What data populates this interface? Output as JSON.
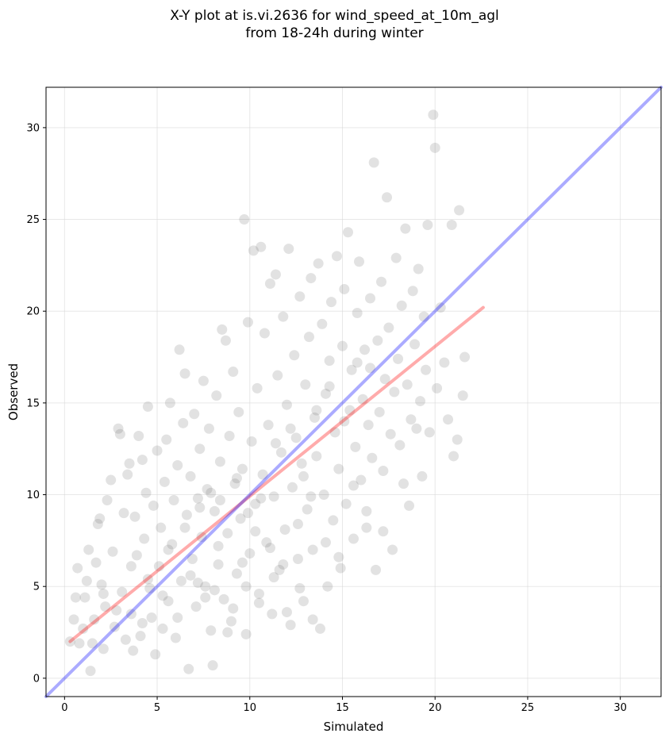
{
  "title": {
    "line1": "X-Y plot at is.vi.2636 for wind_speed_at_10m_agl",
    "line2": "from 18-24h during winter"
  },
  "chart_data": {
    "type": "scatter",
    "xlabel": "Simulated",
    "ylabel": "Observed",
    "xlim": [
      -1.0,
      32.2
    ],
    "ylim": [
      -1.0,
      32.2
    ],
    "xticks": [
      0,
      5,
      10,
      15,
      20,
      25,
      30
    ],
    "yticks": [
      0,
      5,
      10,
      15,
      20,
      25,
      30
    ],
    "grid": true,
    "point_color": "#555555",
    "point_opacity": 0.17,
    "points": [
      [
        0.3,
        2.0
      ],
      [
        0.5,
        3.2
      ],
      [
        0.6,
        4.4
      ],
      [
        0.7,
        6.0
      ],
      [
        0.8,
        1.9
      ],
      [
        1.0,
        2.7
      ],
      [
        1.1,
        4.4
      ],
      [
        1.2,
        5.3
      ],
      [
        1.3,
        7.0
      ],
      [
        1.4,
        0.4
      ],
      [
        1.5,
        1.9
      ],
      [
        1.6,
        3.2
      ],
      [
        1.7,
        6.3
      ],
      [
        1.8,
        8.4
      ],
      [
        1.9,
        8.7
      ],
      [
        2.0,
        5.1
      ],
      [
        2.1,
        1.6
      ],
      [
        2.2,
        3.9
      ],
      [
        2.3,
        9.7
      ],
      [
        2.5,
        10.8
      ],
      [
        2.6,
        6.9
      ],
      [
        2.7,
        2.8
      ],
      [
        2.9,
        13.6
      ],
      [
        3.0,
        13.3
      ],
      [
        3.1,
        4.7
      ],
      [
        3.2,
        9.0
      ],
      [
        3.4,
        11.1
      ],
      [
        3.5,
        11.7
      ],
      [
        3.6,
        3.5
      ],
      [
        3.7,
        1.5
      ],
      [
        3.8,
        8.8
      ],
      [
        3.9,
        6.7
      ],
      [
        4.0,
        13.2
      ],
      [
        4.1,
        2.3
      ],
      [
        4.2,
        11.9
      ],
      [
        4.3,
        7.6
      ],
      [
        4.4,
        10.1
      ],
      [
        4.5,
        14.8
      ],
      [
        4.6,
        4.9
      ],
      [
        4.7,
        3.3
      ],
      [
        4.8,
        9.4
      ],
      [
        4.9,
        1.3
      ],
      [
        5.0,
        12.4
      ],
      [
        5.1,
        6.1
      ],
      [
        5.2,
        8.2
      ],
      [
        5.3,
        2.7
      ],
      [
        5.4,
        10.7
      ],
      [
        5.5,
        13.0
      ],
      [
        5.6,
        4.2
      ],
      [
        5.7,
        15.0
      ],
      [
        5.8,
        7.3
      ],
      [
        5.9,
        9.7
      ],
      [
        6.0,
        2.2
      ],
      [
        6.1,
        11.6
      ],
      [
        6.2,
        17.9
      ],
      [
        6.3,
        5.3
      ],
      [
        6.4,
        13.9
      ],
      [
        6.5,
        16.6
      ],
      [
        6.6,
        8.9
      ],
      [
        6.7,
        0.5
      ],
      [
        6.8,
        11.0
      ],
      [
        6.9,
        6.5
      ],
      [
        7.0,
        14.4
      ],
      [
        7.1,
        3.9
      ],
      [
        7.2,
        9.8
      ],
      [
        7.3,
        12.5
      ],
      [
        7.4,
        7.7
      ],
      [
        7.5,
        16.2
      ],
      [
        7.6,
        5.0
      ],
      [
        7.7,
        10.3
      ],
      [
        7.8,
        13.6
      ],
      [
        7.9,
        2.6
      ],
      [
        8.0,
        0.7
      ],
      [
        8.1,
        9.1
      ],
      [
        8.2,
        15.4
      ],
      [
        8.3,
        6.2
      ],
      [
        8.4,
        11.8
      ],
      [
        8.5,
        19.0
      ],
      [
        8.6,
        4.3
      ],
      [
        8.7,
        18.4
      ],
      [
        8.8,
        7.9
      ],
      [
        8.9,
        13.2
      ],
      [
        9.0,
        3.1
      ],
      [
        9.1,
        16.7
      ],
      [
        9.2,
        10.6
      ],
      [
        9.3,
        5.7
      ],
      [
        9.4,
        14.5
      ],
      [
        9.5,
        8.7
      ],
      [
        9.6,
        11.4
      ],
      [
        9.7,
        25.0
      ],
      [
        9.8,
        2.4
      ],
      [
        9.9,
        19.4
      ],
      [
        10.0,
        6.8
      ],
      [
        10.1,
        12.9
      ],
      [
        10.2,
        23.3
      ],
      [
        10.3,
        9.5
      ],
      [
        10.4,
        15.8
      ],
      [
        10.5,
        4.6
      ],
      [
        10.6,
        23.5
      ],
      [
        10.7,
        11.1
      ],
      [
        10.8,
        18.8
      ],
      [
        10.9,
        7.4
      ],
      [
        11.0,
        13.8
      ],
      [
        11.1,
        21.5
      ],
      [
        11.2,
        3.5
      ],
      [
        11.3,
        9.9
      ],
      [
        11.4,
        22.0
      ],
      [
        11.5,
        16.5
      ],
      [
        11.6,
        5.9
      ],
      [
        11.7,
        12.3
      ],
      [
        11.8,
        19.7
      ],
      [
        11.9,
        8.1
      ],
      [
        12.0,
        14.9
      ],
      [
        12.1,
        23.4
      ],
      [
        12.2,
        2.9
      ],
      [
        12.3,
        10.4
      ],
      [
        12.4,
        17.6
      ],
      [
        12.5,
        13.1
      ],
      [
        12.6,
        6.5
      ],
      [
        12.7,
        20.8
      ],
      [
        12.8,
        11.7
      ],
      [
        12.9,
        4.2
      ],
      [
        13.0,
        16.0
      ],
      [
        13.1,
        9.2
      ],
      [
        13.2,
        18.6
      ],
      [
        13.3,
        21.8
      ],
      [
        13.4,
        7.0
      ],
      [
        13.5,
        14.2
      ],
      [
        13.6,
        12.1
      ],
      [
        13.7,
        22.6
      ],
      [
        13.8,
        2.7
      ],
      [
        13.9,
        19.3
      ],
      [
        14.0,
        10.0
      ],
      [
        14.1,
        15.5
      ],
      [
        14.2,
        5.0
      ],
      [
        14.3,
        17.3
      ],
      [
        14.4,
        20.5
      ],
      [
        14.5,
        8.6
      ],
      [
        14.6,
        13.4
      ],
      [
        14.7,
        23.0
      ],
      [
        14.8,
        11.4
      ],
      [
        14.9,
        6.0
      ],
      [
        15.0,
        18.1
      ],
      [
        15.1,
        21.2
      ],
      [
        15.2,
        9.5
      ],
      [
        15.3,
        24.3
      ],
      [
        15.4,
        14.6
      ],
      [
        15.5,
        16.8
      ],
      [
        15.6,
        7.6
      ],
      [
        15.7,
        12.6
      ],
      [
        15.8,
        19.9
      ],
      [
        15.9,
        22.7
      ],
      [
        16.0,
        10.8
      ],
      [
        16.1,
        15.2
      ],
      [
        16.2,
        17.9
      ],
      [
        16.3,
        8.2
      ],
      [
        16.4,
        13.8
      ],
      [
        16.5,
        20.7
      ],
      [
        16.6,
        12.0
      ],
      [
        16.7,
        28.1
      ],
      [
        16.8,
        5.9
      ],
      [
        16.9,
        18.4
      ],
      [
        17.0,
        14.5
      ],
      [
        17.1,
        21.6
      ],
      [
        17.2,
        11.3
      ],
      [
        17.3,
        16.3
      ],
      [
        17.4,
        26.2
      ],
      [
        17.5,
        19.1
      ],
      [
        17.6,
        13.3
      ],
      [
        17.7,
        7.0
      ],
      [
        17.8,
        15.6
      ],
      [
        17.9,
        22.9
      ],
      [
        18.0,
        17.4
      ],
      [
        18.1,
        12.7
      ],
      [
        18.2,
        20.3
      ],
      [
        18.3,
        10.6
      ],
      [
        18.4,
        24.5
      ],
      [
        18.5,
        16.0
      ],
      [
        18.6,
        9.4
      ],
      [
        18.7,
        14.1
      ],
      [
        18.8,
        21.1
      ],
      [
        18.9,
        18.2
      ],
      [
        19.0,
        13.6
      ],
      [
        19.1,
        22.3
      ],
      [
        19.2,
        15.1
      ],
      [
        19.3,
        11.0
      ],
      [
        19.4,
        19.7
      ],
      [
        19.5,
        16.8
      ],
      [
        19.6,
        24.7
      ],
      [
        19.7,
        13.4
      ],
      [
        19.9,
        30.7
      ],
      [
        20.0,
        28.9
      ],
      [
        20.1,
        15.8
      ],
      [
        20.3,
        20.2
      ],
      [
        20.5,
        17.2
      ],
      [
        20.7,
        14.1
      ],
      [
        20.9,
        24.7
      ],
      [
        21.0,
        12.1
      ],
      [
        21.2,
        13.0
      ],
      [
        21.3,
        25.5
      ],
      [
        21.5,
        15.4
      ],
      [
        21.6,
        17.5
      ],
      [
        3.3,
        2.1
      ],
      [
        4.2,
        3.0
      ],
      [
        5.3,
        4.5
      ],
      [
        6.1,
        3.3
      ],
      [
        7.2,
        5.2
      ],
      [
        8.1,
        4.8
      ],
      [
        8.8,
        2.5
      ],
      [
        9.6,
        6.3
      ],
      [
        2.1,
        4.6
      ],
      [
        2.8,
        3.7
      ],
      [
        3.6,
        6.1
      ],
      [
        4.5,
        5.4
      ],
      [
        5.6,
        7.0
      ],
      [
        6.5,
        8.2
      ],
      [
        7.3,
        9.3
      ],
      [
        7.9,
        10.1
      ],
      [
        8.4,
        9.7
      ],
      [
        9.3,
        10.9
      ],
      [
        9.9,
        9.0
      ],
      [
        10.6,
        9.8
      ],
      [
        11.4,
        12.8
      ],
      [
        12.2,
        13.6
      ],
      [
        12.9,
        11.0
      ],
      [
        13.6,
        14.6
      ],
      [
        14.3,
        15.9
      ],
      [
        15.1,
        14.0
      ],
      [
        15.8,
        17.2
      ],
      [
        16.5,
        16.9
      ],
      [
        10.3,
        8.0
      ],
      [
        11.1,
        7.1
      ],
      [
        11.8,
        6.2
      ],
      [
        12.6,
        8.4
      ],
      [
        13.3,
        9.9
      ],
      [
        14.1,
        7.4
      ],
      [
        14.8,
        6.6
      ],
      [
        15.6,
        10.5
      ],
      [
        16.3,
        9.1
      ],
      [
        17.2,
        8.0
      ],
      [
        6.8,
        5.6
      ],
      [
        7.6,
        4.4
      ],
      [
        8.3,
        7.2
      ],
      [
        9.1,
        3.8
      ],
      [
        9.8,
        5.0
      ],
      [
        10.5,
        4.1
      ],
      [
        11.3,
        5.5
      ],
      [
        12.0,
        3.6
      ],
      [
        12.7,
        4.9
      ],
      [
        13.4,
        3.2
      ]
    ],
    "series": [
      {
        "name": "",
        "color": "#ff0000",
        "opacity": 0.33,
        "x": [
          0.3,
          22.6
        ],
        "y": [
          2.0,
          20.2
        ]
      },
      {
        "name": "",
        "color": "#0000ff",
        "opacity": 0.33,
        "x": [
          -1.0,
          32.2
        ],
        "y": [
          -1.0,
          32.2
        ]
      }
    ]
  }
}
